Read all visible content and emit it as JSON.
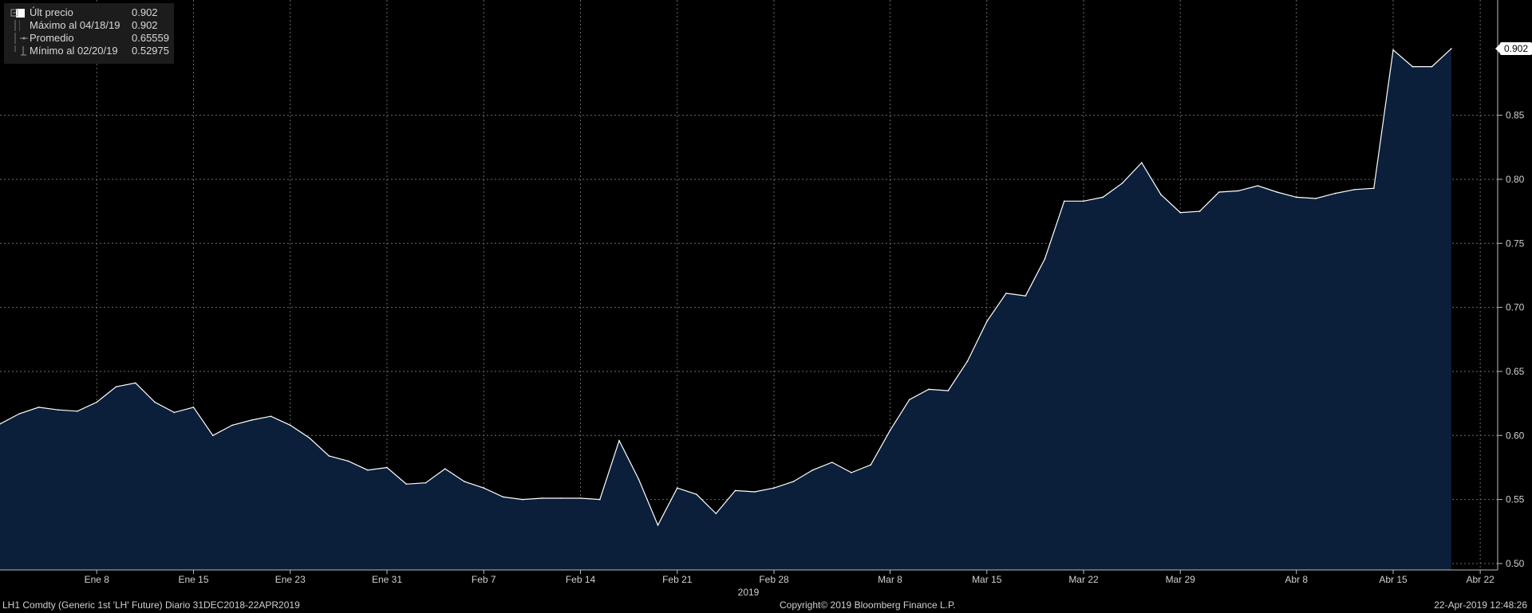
{
  "legend": {
    "items": [
      {
        "label": "Últ precio",
        "value": "0.902"
      },
      {
        "label": "Máximo al 04/18/19",
        "value": "0.902"
      },
      {
        "label": "Promedio",
        "value": "0.65559"
      },
      {
        "label": "Mínimo al 02/20/19",
        "value": "0.52975"
      }
    ]
  },
  "last_price_flag": "0.902",
  "footer": {
    "left": "LH1 Comdty (Generic 1st 'LH' Future)  Diario 31DEC2018-22APR2019",
    "center": "Copyright© 2019 Bloomberg Finance L.P.",
    "right": "22-Apr-2019 12:48:26"
  },
  "colors": {
    "background": "#000000",
    "area_fill": "#0c1f3a",
    "line": "#ffffff",
    "grid": "#6a6a6a"
  },
  "chart_data": {
    "type": "area",
    "title": "",
    "xlabel": "2019",
    "ylabel": "",
    "ylim": [
      0.495,
      0.94
    ],
    "grid": true,
    "legend_position": "top-left",
    "x_tick_labels": [
      "Ene 8",
      "Ene 15",
      "Ene 23",
      "Ene 31",
      "Feb 7",
      "Feb 14",
      "Feb 21",
      "Feb 28",
      "Mar 8",
      "Mar 15",
      "Mar 22",
      "Mar 29",
      "Abr 8",
      "Abr 15",
      "Abr 22"
    ],
    "x_tick_index": [
      5,
      10,
      15,
      20,
      25,
      30,
      35,
      40,
      46,
      51,
      56,
      61,
      67,
      72,
      76.5
    ],
    "y_ticks": [
      0.5,
      0.55,
      0.6,
      0.65,
      0.7,
      0.75,
      0.8,
      0.85
    ],
    "series": [
      {
        "values": [
          0.609,
          0.617,
          0.622,
          0.62,
          0.619,
          0.626,
          0.638,
          0.641,
          0.626,
          0.618,
          0.622,
          0.6,
          0.608,
          0.612,
          0.615,
          0.608,
          0.598,
          0.584,
          0.58,
          0.573,
          0.575,
          0.562,
          0.563,
          0.574,
          0.564,
          0.559,
          0.552,
          0.55,
          0.551,
          0.551,
          0.551,
          0.55,
          0.596,
          0.566,
          0.53,
          0.559,
          0.554,
          0.539,
          0.557,
          0.556,
          0.559,
          0.564,
          0.573,
          0.579,
          0.571,
          0.577,
          0.604,
          0.628,
          0.636,
          0.635,
          0.658,
          0.689,
          0.711,
          0.709,
          0.738,
          0.783,
          0.783,
          0.786,
          0.797,
          0.813,
          0.788,
          0.774,
          0.775,
          0.79,
          0.791,
          0.795,
          0.79,
          0.786,
          0.785,
          0.789,
          0.792,
          0.793,
          0.901,
          0.888,
          0.888,
          0.902
        ]
      }
    ]
  }
}
